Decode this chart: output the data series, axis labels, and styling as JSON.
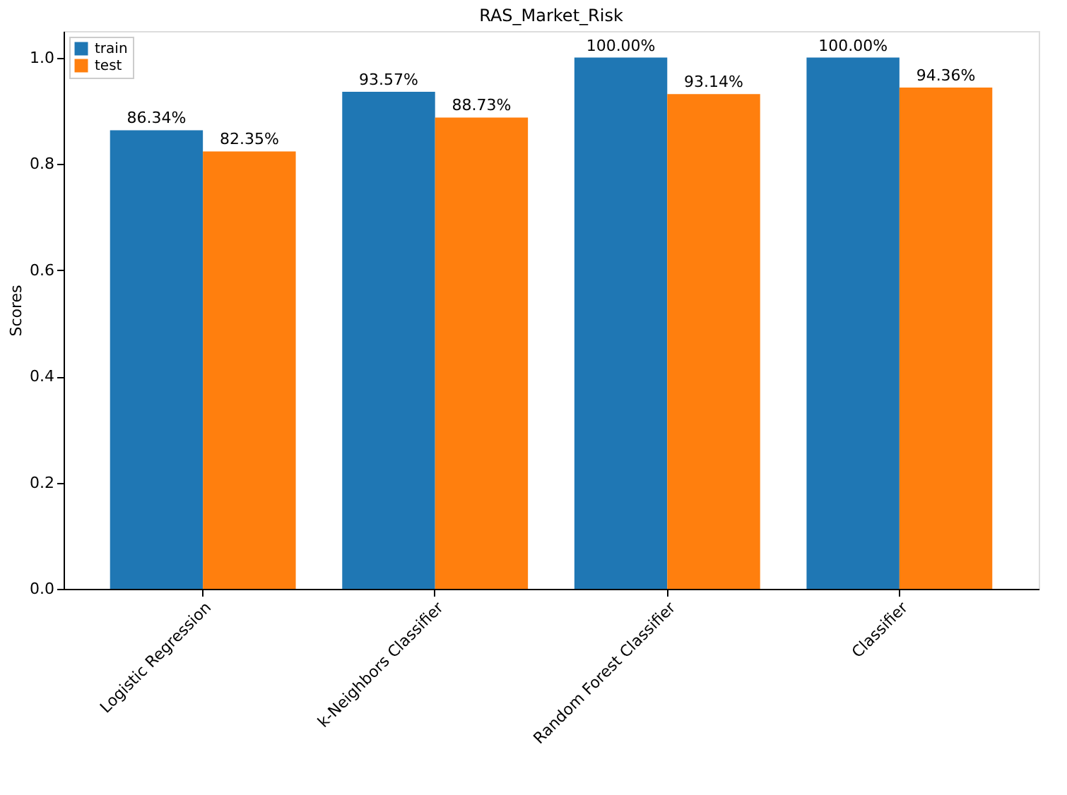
{
  "chart_data": {
    "type": "bar",
    "title": "RAS_Market_Risk",
    "ylabel": "Scores",
    "categories": [
      "Logistic Regression",
      "k-Neighbors Classifier",
      "Random Forest Classifier",
      "Classifier"
    ],
    "series": [
      {
        "name": "train",
        "color": "#1f77b4",
        "values": [
          0.8634,
          0.9357,
          1.0,
          1.0
        ],
        "value_labels": [
          "86.34%",
          "93.57%",
          "100.00%",
          "100.00%"
        ]
      },
      {
        "name": "test",
        "color": "#ff7f0e",
        "values": [
          0.8235,
          0.8873,
          0.9314,
          0.9436
        ],
        "value_labels": [
          "82.35%",
          "88.73%",
          "93.14%",
          "94.36%"
        ]
      }
    ],
    "ylim": [
      0,
      1.05
    ],
    "yticks": [
      {
        "value": 0,
        "label": "0.0"
      },
      {
        "value": 0.2,
        "label": "0.2"
      },
      {
        "value": 0.4,
        "label": "0.4"
      },
      {
        "value": 0.6,
        "label": "0.6"
      },
      {
        "value": 0.8,
        "label": "0.8"
      },
      {
        "value": 1.0,
        "label": "1.0"
      }
    ],
    "grid": false,
    "legend": "top left"
  }
}
